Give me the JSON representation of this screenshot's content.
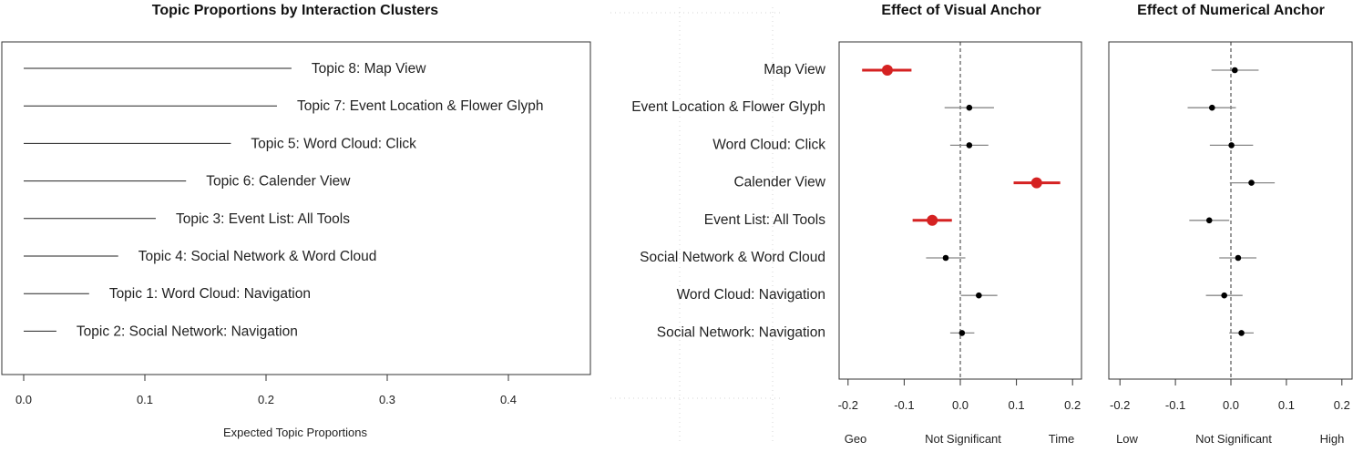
{
  "chart_data": [
    {
      "type": "bar",
      "title": "Topic Proportions by Interaction Clusters",
      "xlabel": "Expected Topic Proportions",
      "xlim": [
        0,
        0.47
      ],
      "xticks": [
        "0.0",
        "0.1",
        "0.2",
        "0.3",
        "0.4"
      ],
      "categories": [
        "Topic 8: Map View",
        "Topic 7: Event Location & Flower Glyph",
        "Topic 5: Word Cloud: Click",
        "Topic 6: Calender View",
        "Topic 3: Event List: All Tools",
        "Topic 4: Social Network & Word Cloud",
        "Topic 1: Word Cloud: Navigation",
        "Topic 2: Social Network: Navigation"
      ],
      "values": [
        0.221,
        0.209,
        0.171,
        0.134,
        0.109,
        0.078,
        0.054,
        0.027
      ],
      "grid": false
    },
    {
      "type": "scatter",
      "title": "Effect of Visual Anchor",
      "categories": [
        "Map View",
        "Event Location & Flower Glyph",
        "Word Cloud: Click",
        "Calender View",
        "Event List: All Tools",
        "Social Network & Word Cloud",
        "Word Cloud: Navigation",
        "Social Network: Navigation"
      ],
      "estimates": [
        -0.13,
        0.016,
        0.016,
        0.136,
        -0.05,
        -0.026,
        0.033,
        0.003
      ],
      "ci_low": [
        -0.175,
        -0.028,
        -0.018,
        0.095,
        -0.085,
        -0.061,
        0.001,
        -0.018
      ],
      "ci_high": [
        -0.087,
        0.06,
        0.05,
        0.178,
        -0.015,
        0.009,
        0.066,
        0.025
      ],
      "significant": [
        true,
        false,
        false,
        true,
        true,
        false,
        false,
        false
      ],
      "xlim": [
        -0.21,
        0.21
      ],
      "xticks": [
        "-0.2",
        "-0.1",
        "0.0",
        "0.1",
        "0.2"
      ],
      "bottom_labels": {
        "left": "Geo",
        "center": "Not Significant",
        "right": "Time"
      },
      "colors": {
        "significant": "#d52222",
        "nonsignificant": "#000000",
        "ci_nonsignificant": "#888888"
      },
      "grid": false
    },
    {
      "type": "scatter",
      "title": "Effect of Numerical Anchor",
      "estimates": [
        0.007,
        -0.034,
        0.001,
        0.037,
        -0.039,
        0.013,
        -0.012,
        0.019
      ],
      "ci_low": [
        -0.035,
        -0.078,
        -0.038,
        -0.002,
        -0.075,
        -0.021,
        -0.045,
        -0.003
      ],
      "ci_high": [
        0.05,
        0.009,
        0.04,
        0.079,
        -0.003,
        0.046,
        0.021,
        0.041
      ],
      "significant": [
        false,
        false,
        false,
        false,
        false,
        false,
        false,
        false
      ],
      "xlim": [
        -0.21,
        0.21
      ],
      "xticks": [
        "-0.2",
        "-0.1",
        "0.0",
        "0.1",
        "0.2"
      ],
      "bottom_labels": {
        "left": "Low",
        "center": "Not Significant",
        "right": "High"
      },
      "grid": false
    }
  ]
}
